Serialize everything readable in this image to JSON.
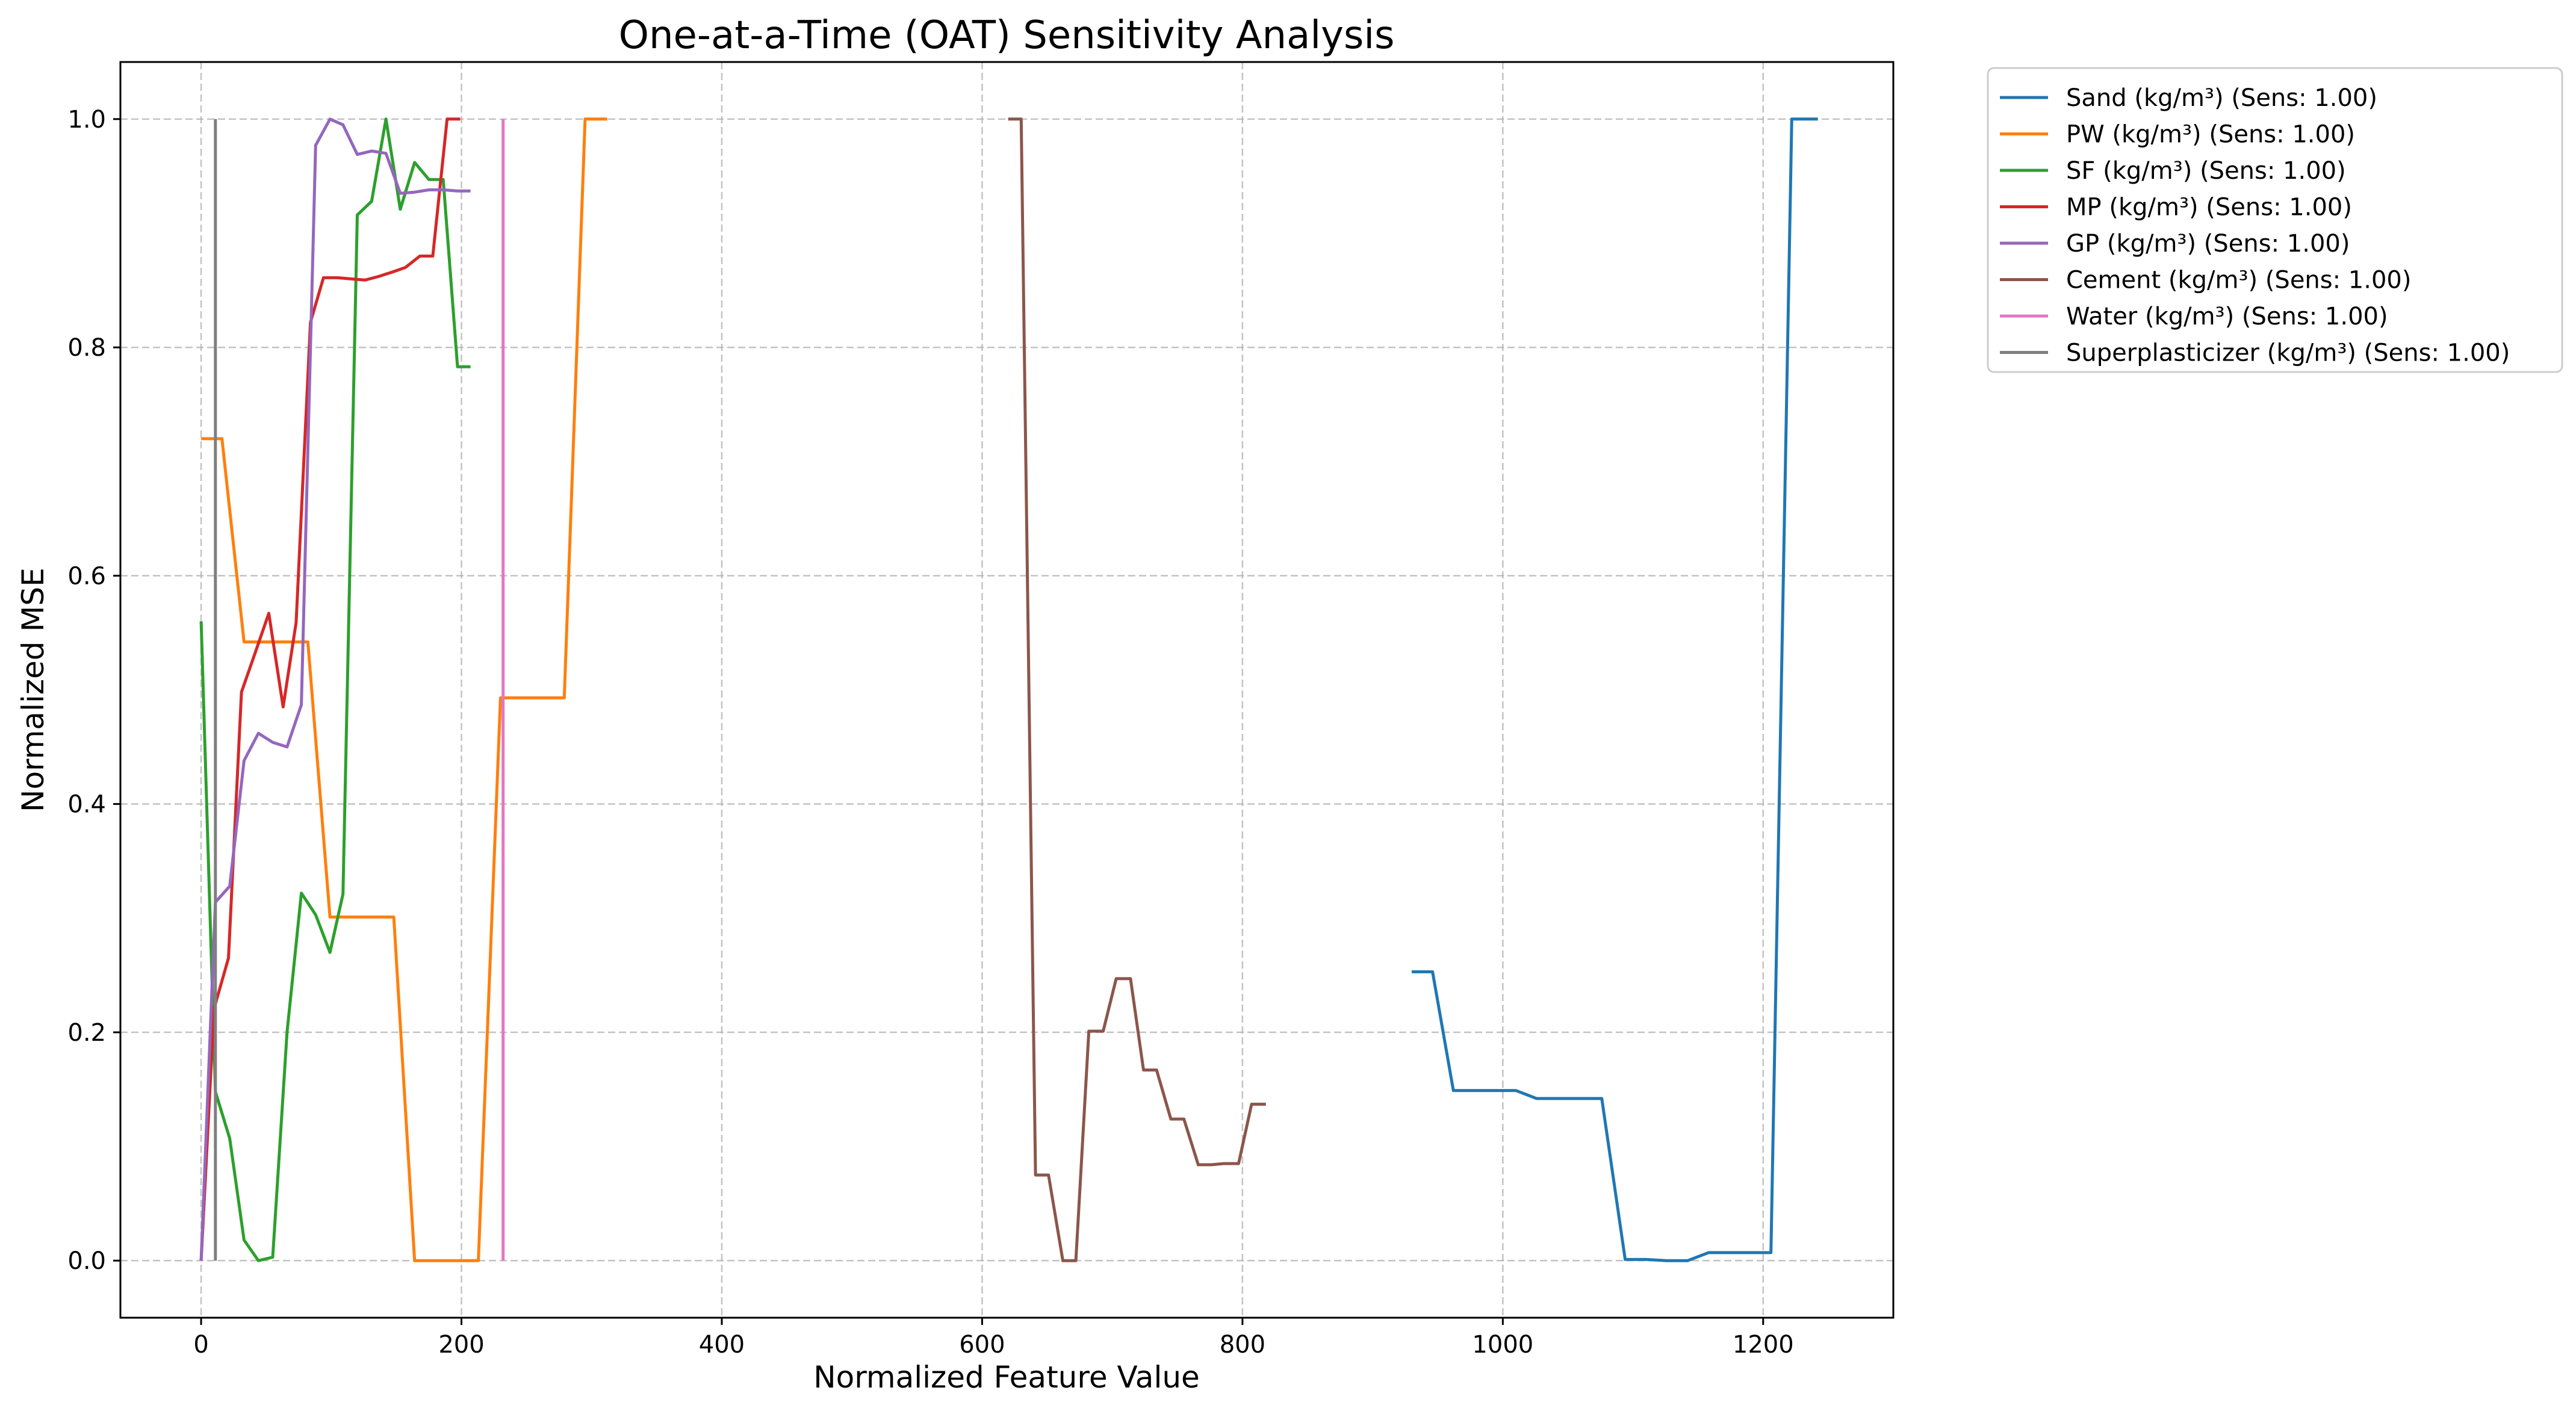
{
  "chart_data": {
    "type": "line",
    "title": "One-at-a-Time (OAT) Sensitivity Analysis",
    "xlabel": "Normalized Feature Value",
    "ylabel": "Normalized MSE",
    "xlim": [
      -62,
      1300
    ],
    "ylim": [
      -0.05,
      1.05
    ],
    "xticks": [
      0,
      200,
      400,
      600,
      800,
      1000,
      1200
    ],
    "xtick_labels": [
      "0",
      "200",
      "400",
      "600",
      "800",
      "1000",
      "1200"
    ],
    "yticks": [
      0.0,
      0.2,
      0.4,
      0.6,
      0.8,
      1.0
    ],
    "ytick_labels": [
      "0.0",
      "0.2",
      "0.4",
      "0.6",
      "0.8",
      "1.0"
    ],
    "grid": true,
    "legend_position": "outside-upper-right",
    "series": [
      {
        "name": "Sand (kg/m³) (Sens: 1.00)",
        "color": "#1f77b4",
        "x": [
          930,
          946,
          962,
          978,
          994,
          1010,
          1026,
          1042,
          1058,
          1076,
          1094,
          1110,
          1126,
          1142,
          1158,
          1174,
          1190,
          1206,
          1222,
          1242
        ],
        "y": [
          0.253,
          0.253,
          0.149,
          0.149,
          0.149,
          0.149,
          0.142,
          0.142,
          0.142,
          0.142,
          0.001,
          0.001,
          0.0,
          0.0,
          0.007,
          0.007,
          0.007,
          0.007,
          1.0,
          1.0
        ]
      },
      {
        "name": "PW (kg/m³) (Sens: 1.00)",
        "color": "#ff7f0e",
        "x": [
          0,
          16,
          33,
          49,
          66,
          82,
          99,
          115,
          132,
          148,
          164,
          181,
          197,
          213,
          230,
          246,
          263,
          279,
          295,
          312
        ],
        "y": [
          0.72,
          0.72,
          0.542,
          0.542,
          0.542,
          0.542,
          0.301,
          0.301,
          0.301,
          0.301,
          0.0,
          0.0,
          0.0,
          0.0,
          0.493,
          0.493,
          0.493,
          0.493,
          1.0,
          1.0
        ]
      },
      {
        "name": "SF (kg/m³) (Sens: 1.00)",
        "color": "#2ca02c",
        "x": [
          0,
          11,
          22,
          33,
          44,
          55,
          66,
          77,
          88,
          99,
          109,
          120,
          131,
          142,
          153,
          164,
          175,
          186,
          197,
          207
        ],
        "y": [
          0.56,
          0.148,
          0.107,
          0.018,
          0.0,
          0.003,
          0.2,
          0.322,
          0.303,
          0.27,
          0.321,
          0.916,
          0.928,
          1.0,
          0.921,
          0.962,
          0.947,
          0.947,
          0.783,
          0.783
        ]
      },
      {
        "name": "MP (kg/m³) (Sens: 1.00)",
        "color": "#d62728",
        "x": [
          0,
          10,
          21,
          31,
          42,
          52,
          63,
          73,
          84,
          94,
          105,
          115,
          126,
          136,
          147,
          157,
          168,
          178,
          189,
          199
        ],
        "y": [
          0.0,
          0.221,
          0.265,
          0.498,
          0.534,
          0.567,
          0.485,
          0.559,
          0.822,
          0.861,
          0.861,
          0.86,
          0.859,
          0.862,
          0.866,
          0.87,
          0.88,
          0.88,
          1.0,
          1.0
        ]
      },
      {
        "name": "GP (kg/m³) (Sens: 1.00)",
        "color": "#9467bd",
        "x": [
          0,
          11,
          22,
          33,
          44,
          55,
          66,
          77,
          88,
          99,
          109,
          120,
          131,
          142,
          153,
          164,
          175,
          186,
          197,
          207
        ],
        "y": [
          0.0,
          0.314,
          0.328,
          0.438,
          0.462,
          0.454,
          0.45,
          0.487,
          0.977,
          1.0,
          0.995,
          0.969,
          0.972,
          0.97,
          0.935,
          0.936,
          0.938,
          0.938,
          0.937,
          0.937
        ]
      },
      {
        "name": "Cement (kg/m³) (Sens: 1.00)",
        "color": "#8c564b",
        "x": [
          620,
          630,
          641,
          651,
          662,
          672,
          682,
          693,
          703,
          714,
          724,
          734,
          745,
          755,
          766,
          776,
          786,
          797,
          807,
          818
        ],
        "y": [
          1.0,
          1.0,
          0.075,
          0.075,
          0.0,
          0.0,
          0.201,
          0.201,
          0.247,
          0.247,
          0.167,
          0.167,
          0.124,
          0.124,
          0.084,
          0.084,
          0.085,
          0.085,
          0.137,
          0.137
        ]
      },
      {
        "name": "Water (kg/m³) (Sens: 1.00)",
        "color": "#e377c2",
        "x": [
          232,
          232
        ],
        "y": [
          0.0,
          1.0
        ]
      },
      {
        "name": "Superplasticizer (kg/m³) (Sens: 1.00)",
        "color": "#7f7f7f",
        "x": [
          11,
          11
        ],
        "y": [
          0.0,
          1.0
        ]
      }
    ]
  }
}
